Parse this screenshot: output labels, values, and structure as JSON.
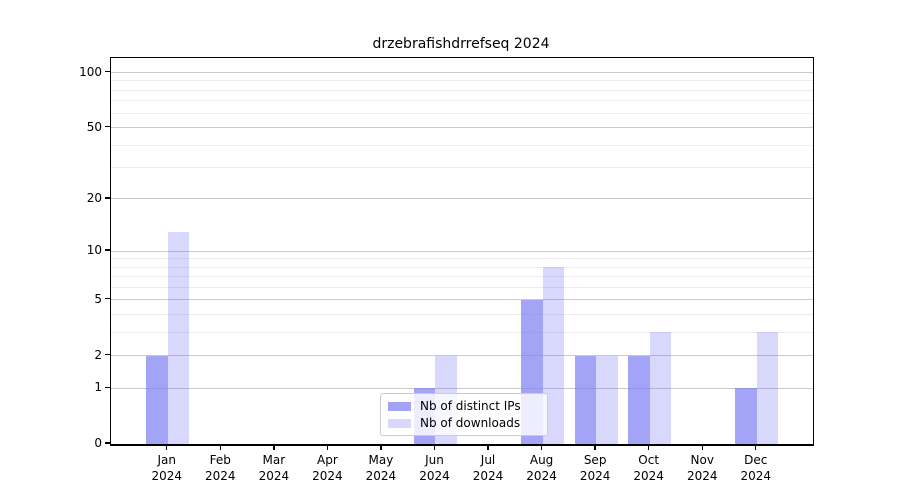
{
  "chart_data": {
    "type": "bar",
    "title": "drzebrafishdrrefseq 2024",
    "categories": [
      "Jan 2024",
      "Feb 2024",
      "Mar 2024",
      "Apr 2024",
      "May 2024",
      "Jun 2024",
      "Jul 2024",
      "Aug 2024",
      "Sep 2024",
      "Oct 2024",
      "Nov 2024",
      "Dec 2024"
    ],
    "series": [
      {
        "name": "Nb of distinct IPs",
        "color": "rgba(125,125,244,0.7)",
        "values": [
          2,
          0,
          0,
          0,
          0,
          1,
          0,
          5,
          2,
          2,
          0,
          1
        ]
      },
      {
        "name": "Nb of downloads",
        "color": "rgba(125,125,244,0.3)",
        "values": [
          13,
          0,
          0,
          0,
          0,
          2,
          0,
          8,
          2,
          3,
          0,
          3
        ]
      }
    ],
    "scale": "log1p",
    "ylim": [
      0,
      120
    ],
    "y_ticks": [
      0,
      1,
      2,
      5,
      10,
      20,
      50,
      100
    ],
    "y_minor_gridlines": [
      3,
      4,
      6,
      7,
      8,
      9,
      30,
      40,
      60,
      70,
      80,
      90
    ],
    "grid": "horizontal",
    "legend_position": "lower center",
    "xlabel": "",
    "ylabel": ""
  },
  "colors": {
    "major_grid": "#c9c9c9",
    "minor_grid": "#ebebeb",
    "spine": "#000000",
    "bar_base": "#7d7df4",
    "background": "#ffffff"
  }
}
